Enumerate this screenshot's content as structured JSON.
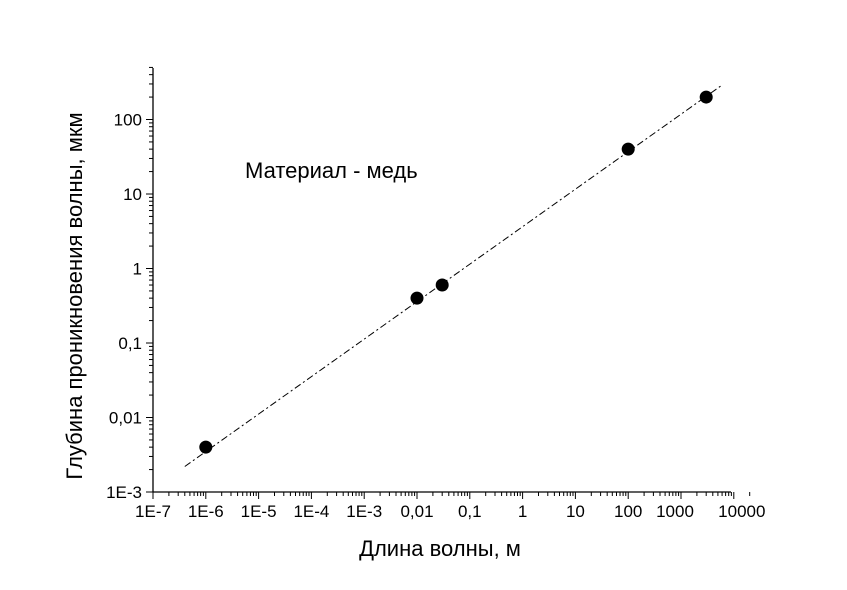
{
  "chart_data": {
    "type": "scatter",
    "xlabel": "Длина волны, м",
    "ylabel": "Глубина проникновения волны, мкм",
    "annotation": "Материал - медь",
    "x_scale": "log",
    "y_scale": "log",
    "xlim": [
      1e-07,
      20000
    ],
    "ylim": [
      0.001,
      500
    ],
    "x_ticks": [
      {
        "value": 1e-07,
        "label": "1E-7"
      },
      {
        "value": 1e-06,
        "label": "1E-6"
      },
      {
        "value": 1e-05,
        "label": "1E-5"
      },
      {
        "value": 0.0001,
        "label": "1E-4"
      },
      {
        "value": 0.001,
        "label": "1E-3"
      },
      {
        "value": 0.01,
        "label": "0,01"
      },
      {
        "value": 0.1,
        "label": "0,1"
      },
      {
        "value": 1,
        "label": "1"
      },
      {
        "value": 10,
        "label": "10"
      },
      {
        "value": 100,
        "label": "100"
      },
      {
        "value": 1000,
        "label": "1000"
      },
      {
        "value": 10000,
        "label": "10000"
      }
    ],
    "y_ticks": [
      {
        "value": 0.001,
        "label": "1E-3"
      },
      {
        "value": 0.01,
        "label": "0,01"
      },
      {
        "value": 0.1,
        "label": "0,1"
      },
      {
        "value": 1,
        "label": "1"
      },
      {
        "value": 10,
        "label": "10"
      },
      {
        "value": 100,
        "label": "100"
      }
    ],
    "series": [
      {
        "points": [
          {
            "x": 1e-06,
            "y": 0.004
          },
          {
            "x": 0.01,
            "y": 0.4
          },
          {
            "x": 0.03,
            "y": 0.6
          },
          {
            "x": 100,
            "y": 40
          },
          {
            "x": 3000,
            "y": 200
          }
        ]
      }
    ],
    "trend_line": {
      "x": [
        4e-07,
        6000
      ],
      "y": [
        0.0022,
        290
      ]
    },
    "grid": false
  }
}
